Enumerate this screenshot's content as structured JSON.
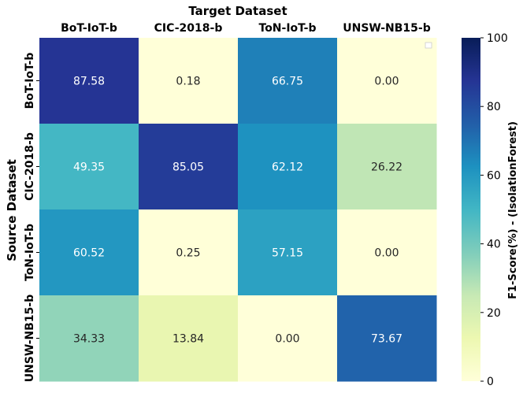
{
  "chart_data": {
    "type": "heatmap",
    "title": "",
    "xlabel": "Target Dataset",
    "ylabel": "Source Dataset",
    "x_categories": [
      "BoT-IoT-b",
      "CIC-2018-b",
      "ToN-IoT-b",
      "UNSW-NB15-b"
    ],
    "y_categories": [
      "BoT-IoT-b",
      "CIC-2018-b",
      "ToN-IoT-b",
      "UNSW-NB15-b"
    ],
    "values": [
      [
        87.58,
        0.18,
        66.75,
        0.0
      ],
      [
        49.35,
        85.05,
        62.12,
        26.22
      ],
      [
        60.52,
        0.25,
        57.15,
        0.0
      ],
      [
        34.33,
        13.84,
        0.0,
        73.67
      ]
    ],
    "value_format": "0.00",
    "colorbar": {
      "label": "F1-Score(%) - (IsolationForest)",
      "range": [
        0,
        100
      ],
      "ticks": [
        0,
        20,
        40,
        60,
        80,
        100
      ],
      "colormap": "YlGnBu"
    },
    "legend": "top-right",
    "grid": false
  }
}
